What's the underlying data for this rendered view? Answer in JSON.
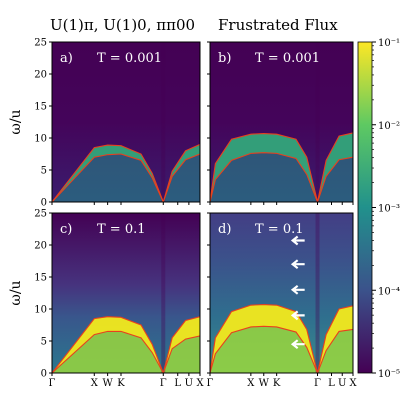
{
  "titles": {
    "left": "U(1)π, U(1)0, ππ00",
    "right": "Frustrated Flux"
  },
  "axes": {
    "ylabel": "ω/u",
    "yticks": [
      "0",
      "5",
      "10",
      "15",
      "20",
      "25"
    ],
    "xticks": [
      "Γ",
      "X",
      "W",
      "K",
      "Γ",
      "L",
      "U",
      "X"
    ]
  },
  "colorbar": {
    "scale": "log",
    "range": [
      1e-05,
      0.1
    ],
    "tick_labels": [
      "10⁻¹",
      "10⁻²",
      "10⁻³",
      "10⁻⁴",
      "10⁻⁵"
    ],
    "colors": [
      "#440154",
      "#3b528b",
      "#21918c",
      "#5ec962",
      "#fde725"
    ]
  },
  "chart_data": [
    {
      "type": "heatmap",
      "panel": "a)",
      "annotation": "T = 0.001",
      "ylim": [
        0,
        25
      ],
      "series": [
        {
          "name": "upper band",
          "x": [
            0,
            0.38,
            0.5,
            0.62,
            0.8,
            0.9,
            1,
            1.08,
            1.2,
            1.33
          ],
          "values": [
            0,
            8.5,
            8.9,
            8.8,
            7.5,
            4.5,
            0,
            4.8,
            8.0,
            9.0
          ]
        },
        {
          "name": "lower band",
          "x": [
            0,
            0.38,
            0.5,
            0.62,
            0.8,
            0.9,
            1,
            1.08,
            1.2,
            1.33
          ],
          "values": [
            0,
            7.0,
            7.4,
            7.5,
            6.5,
            3.8,
            0,
            4.0,
            6.6,
            7.5
          ]
        }
      ]
    },
    {
      "type": "heatmap",
      "panel": "b)",
      "annotation": "T = 0.001",
      "ylim": [
        0,
        25
      ],
      "series": [
        {
          "name": "upper band",
          "x": [
            0,
            0.05,
            0.2,
            0.38,
            0.5,
            0.62,
            0.8,
            0.9,
            1,
            1.08,
            1.2,
            1.33
          ],
          "values": [
            0,
            6.0,
            9.8,
            10.6,
            10.7,
            10.6,
            9.8,
            7.0,
            0,
            6.5,
            10.3,
            10.8
          ]
        },
        {
          "name": "lower band",
          "x": [
            0,
            0.05,
            0.2,
            0.38,
            0.5,
            0.62,
            0.8,
            0.9,
            1,
            1.08,
            1.2,
            1.33
          ],
          "values": [
            0,
            3.5,
            6.5,
            7.6,
            7.7,
            7.6,
            6.8,
            4.3,
            0,
            4.0,
            6.6,
            7.0
          ]
        }
      ]
    },
    {
      "type": "heatmap",
      "panel": "c)",
      "annotation": "T = 0.1",
      "ylim": [
        0,
        25
      ],
      "series": [
        {
          "name": "upper band",
          "x": [
            0,
            0.38,
            0.5,
            0.62,
            0.8,
            0.9,
            1,
            1.08,
            1.2,
            1.33
          ],
          "values": [
            0,
            8.5,
            8.8,
            8.7,
            7.5,
            4.5,
            0,
            5.5,
            8.2,
            8.8
          ]
        },
        {
          "name": "lower band",
          "x": [
            0,
            0.38,
            0.5,
            0.62,
            0.8,
            0.9,
            1,
            1.08,
            1.2,
            1.33
          ],
          "values": [
            0,
            6.0,
            6.5,
            6.5,
            5.5,
            3.2,
            0,
            3.8,
            5.3,
            5.8
          ]
        }
      ]
    },
    {
      "type": "heatmap",
      "panel": "d)",
      "annotation": "T = 0.1",
      "ylim": [
        0,
        25
      ],
      "series": [
        {
          "name": "upper band",
          "x": [
            0,
            0.05,
            0.2,
            0.38,
            0.5,
            0.62,
            0.8,
            0.9,
            1,
            1.08,
            1.2,
            1.33
          ],
          "values": [
            0,
            5.5,
            9.6,
            10.6,
            10.7,
            10.6,
            9.6,
            6.8,
            0,
            6.0,
            10.0,
            10.5
          ]
        },
        {
          "name": "lower band",
          "x": [
            0,
            0.05,
            0.2,
            0.38,
            0.5,
            0.62,
            0.8,
            0.9,
            1,
            1.08,
            1.2,
            1.33
          ],
          "values": [
            0,
            3.0,
            6.3,
            7.2,
            7.3,
            7.2,
            6.4,
            4.0,
            0,
            3.5,
            6.5,
            6.8
          ]
        }
      ],
      "arrow_markers_omega": [
        20.7,
        17.0,
        13.0,
        9.0,
        4.5
      ]
    }
  ]
}
